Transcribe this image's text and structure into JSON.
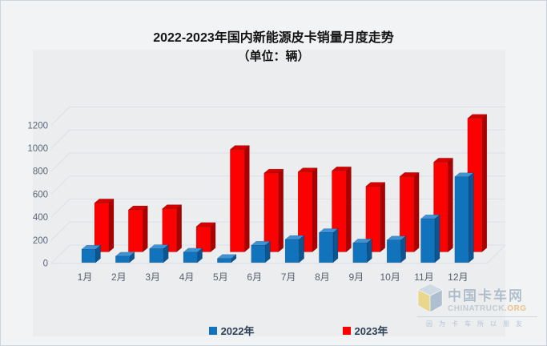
{
  "title": {
    "line1": "2022-2023年国内新能源皮卡销量月度走势",
    "line2": "（单位：辆）"
  },
  "chart_data": {
    "type": "bar",
    "variant": "3d-clustered-column",
    "title": "2022-2023年国内新能源皮卡销量月度走势",
    "subtitle": "（单位：辆）",
    "unit": "辆",
    "categories": [
      "1月",
      "2月",
      "3月",
      "4月",
      "5月",
      "6月",
      "7月",
      "8月",
      "9月",
      "10月",
      "11月",
      "12月"
    ],
    "series": [
      {
        "name": "2022年",
        "color": "#1173BC",
        "color_top": "#3E93D4",
        "color_side": "#0B5592",
        "values": [
          115,
          55,
          120,
          90,
          35,
          150,
          200,
          260,
          170,
          195,
          380,
          745
        ]
      },
      {
        "name": "2023年",
        "color": "#FB0101",
        "color_top": "#D40000",
        "color_side": "#AB0000",
        "values": [
          425,
          365,
          375,
          220,
          890,
          685,
          695,
          705,
          570,
          655,
          780,
          1160
        ]
      }
    ],
    "ylim": [
      0,
      1200
    ],
    "yticks": [
      0,
      200,
      400,
      600,
      800,
      1000,
      1200
    ],
    "grid": true,
    "legend_position": "bottom"
  },
  "legend": [
    {
      "label": "2022年",
      "color": "#1173BC"
    },
    {
      "label": "2023年",
      "color": "#FB0101"
    }
  ],
  "watermark": {
    "brand": "中国卡车网",
    "site": "CHINATRUCK",
    "site_suffix": ".ORG",
    "slogan": "因为卡车所以朋友"
  },
  "colors": {
    "canvas_bg": "#F2F3F5",
    "plot_bg": "#EBEDEE",
    "gridline": "#DBE0E9",
    "axis_text": "#5B6677",
    "category_text": "#56606E",
    "legend_text": "#2E4156",
    "title_text": "#141414",
    "border": "#CBD5DF"
  }
}
